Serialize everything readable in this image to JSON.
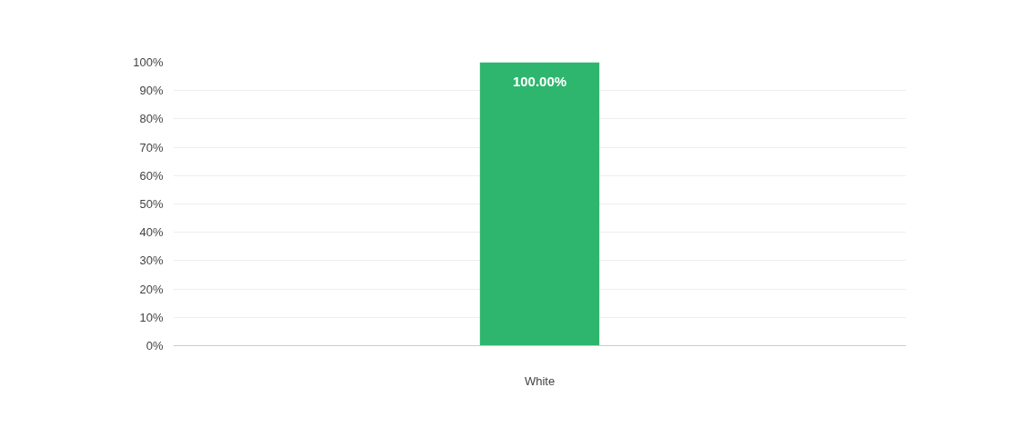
{
  "chart_data": {
    "type": "bar",
    "categories": [
      "White"
    ],
    "series": [
      {
        "color": "#2eb66e",
        "values": [
          100
        ],
        "value_labels": [
          "100.00%"
        ]
      }
    ],
    "ylim": [
      0,
      100
    ],
    "yticks": [
      {
        "value": 0,
        "label": "0%"
      },
      {
        "value": 10,
        "label": "10%"
      },
      {
        "value": 20,
        "label": "20%"
      },
      {
        "value": 30,
        "label": "30%"
      },
      {
        "value": 40,
        "label": "40%"
      },
      {
        "value": 50,
        "label": "50%"
      },
      {
        "value": 60,
        "label": "60%"
      },
      {
        "value": 70,
        "label": "70%"
      },
      {
        "value": 80,
        "label": "80%"
      },
      {
        "value": 90,
        "label": "90%"
      },
      {
        "value": 100,
        "label": "100%"
      }
    ],
    "grid": "y"
  }
}
